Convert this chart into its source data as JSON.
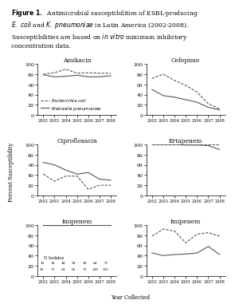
{
  "years": [
    2002,
    2003,
    2004,
    2005,
    2006,
    2007,
    2008
  ],
  "ylabel": "Percent Susceptibility",
  "xlabel": "Year Collected",
  "panels": [
    {
      "title": "Amikacin",
      "ecoli": [
        80,
        83,
        90,
        82,
        83,
        82,
        82
      ],
      "kpneum": [
        79,
        75,
        76,
        78,
        75,
        75,
        77
      ],
      "ylim": [
        0,
        100
      ],
      "show_legend": true,
      "show_isolates": false
    },
    {
      "title": "Cefepime",
      "ecoli": [
        72,
        80,
        68,
        58,
        45,
        22,
        12
      ],
      "kpneum": [
        50,
        38,
        35,
        30,
        25,
        15,
        10
      ],
      "ylim": [
        0,
        100
      ],
      "show_legend": false,
      "show_isolates": false
    },
    {
      "title": "Ciprofloxacin",
      "ecoli": [
        42,
        28,
        38,
        38,
        12,
        20,
        20
      ],
      "kpneum": [
        65,
        60,
        50,
        42,
        45,
        32,
        30
      ],
      "ylim": [
        0,
        100
      ],
      "show_legend": false,
      "show_isolates": false
    },
    {
      "title": "Ertapenem",
      "ecoli": [
        100,
        100,
        100,
        100,
        100,
        100,
        100
      ],
      "kpneum": [
        100,
        100,
        100,
        99,
        99,
        98,
        90
      ],
      "ylim": [
        0,
        100
      ],
      "show_legend": false,
      "show_isolates": false
    },
    {
      "title": "Imipenem",
      "ecoli": [
        99,
        99,
        99,
        100,
        99,
        100,
        100
      ],
      "kpneum": [
        100,
        100,
        100,
        100,
        100,
        100,
        100
      ],
      "ylim": [
        0,
        100
      ],
      "show_legend": false,
      "show_isolates": true,
      "isolates_ecoli": [
        16,
        14,
        44,
        39,
        38,
        64,
        57
      ],
      "isolates_kpneum": [
        29,
        75,
        94,
        60,
        73,
        138,
        135
      ]
    },
    {
      "title": "Imipenem",
      "ecoli": [
        78,
        92,
        88,
        65,
        82,
        85,
        78
      ],
      "kpneum": [
        45,
        40,
        42,
        43,
        45,
        58,
        42
      ],
      "ylim": [
        0,
        100
      ],
      "show_legend": false,
      "show_isolates": false
    }
  ],
  "ecoli_color": "#555555",
  "kpneum_color": "#555555",
  "fontsize_title": 5.5,
  "fontsize_axis": 4.8,
  "fontsize_tick": 4.5,
  "fontsize_legend": 4.0,
  "fontsize_caption": 5.5,
  "background": "#ffffff"
}
